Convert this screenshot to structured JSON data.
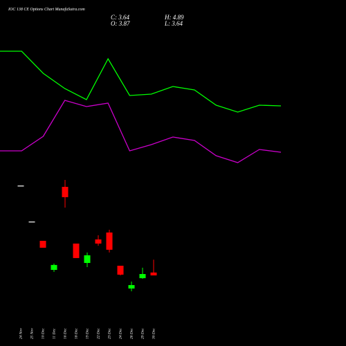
{
  "chart_data": [
    {
      "type": "candlestick",
      "title": "IOC 138 CE Options Chart MunafaSutra.com",
      "header": [
        "C: 3.64",
        "O: 3.87",
        "H: 4.89",
        "L: 3.64"
      ],
      "categories": [
        "24 Nov",
        "25 Nov",
        "10 Dec",
        "11 Dec",
        "16 Dec",
        "18 Dec",
        "19 Dec",
        "22 Dec",
        "23 Dec",
        "24 Dec",
        "26 Dec",
        "29 Dec",
        "30 Dec"
      ],
      "open": [
        10.79,
        7.93,
        6.39,
        4.08,
        10.68,
        6.17,
        4.63,
        6.5,
        7.05,
        4.41,
        2.6,
        3.42,
        3.87
      ],
      "high": [
        10.79,
        7.93,
        6.39,
        4.58,
        11.23,
        6.17,
        5.46,
        6.83,
        7.27,
        4.41,
        3.15,
        4.25,
        4.89
      ],
      "low": [
        10.79,
        7.93,
        5.84,
        3.92,
        9.03,
        5.02,
        4.3,
        6.0,
        5.46,
        3.64,
        2.38,
        3.37,
        3.64
      ],
      "close": [
        10.79,
        7.93,
        5.84,
        4.47,
        9.86,
        5.02,
        5.24,
        6.17,
        5.68,
        3.7,
        2.87,
        3.75,
        3.64
      ],
      "colors": {
        "up": "#00ff00",
        "down": "#ff0000",
        "flat": "#d0d0d0"
      },
      "ylim": [
        1.88,
        11.78
      ]
    },
    {
      "type": "line",
      "x": [
        0,
        1,
        2,
        3,
        4,
        5,
        6,
        7,
        8,
        9,
        10,
        11,
        12,
        13
      ],
      "xlim": [
        0,
        13
      ],
      "ylim": [
        0,
        100
      ],
      "series": [
        {
          "color": "#00ff00",
          "values": [
            88,
            88,
            72,
            61,
            53,
            82.5,
            56,
            57,
            62.5,
            60,
            49,
            44,
            49,
            48.5
          ]
        },
        {
          "color": "#cc00cc",
          "values": [
            16,
            16,
            26.5,
            52.5,
            48,
            50.5,
            16,
            20.5,
            26,
            23.5,
            12.5,
            7.5,
            17,
            15
          ]
        }
      ]
    }
  ]
}
